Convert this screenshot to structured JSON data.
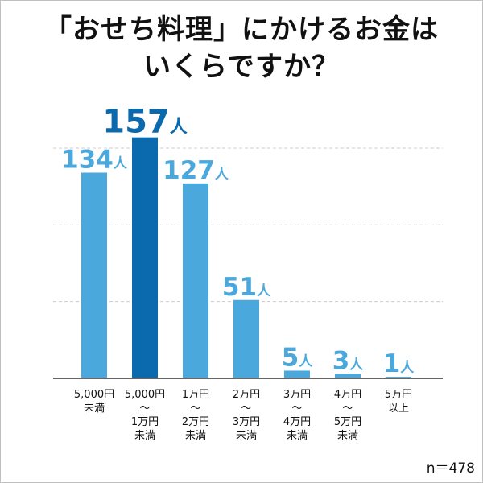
{
  "title_lines": [
    "「おせち料理」にかけるお金は",
    "いくらですか？"
  ],
  "sample_size": "n＝478",
  "colors": {
    "bar": "#4aa8dc",
    "bar_highlight": "#0b6aad",
    "gridline": "#cccccc",
    "axis": "#333333"
  },
  "chart_data": {
    "type": "bar",
    "title": "「おせち料理」にかけるお金はいくらですか？",
    "categories": [
      [
        "5,000円",
        "未満"
      ],
      [
        "5,000円",
        "～",
        "1万円",
        "未満"
      ],
      [
        "1万円",
        "～",
        "2万円",
        "未満"
      ],
      [
        "2万円",
        "～",
        "3万円",
        "未満"
      ],
      [
        "3万円",
        "～",
        "4万円",
        "未満"
      ],
      [
        "4万円",
        "～",
        "5万円",
        "未満"
      ],
      [
        "5万円",
        "以上"
      ]
    ],
    "values": [
      134,
      157,
      127,
      51,
      5,
      3,
      1
    ],
    "unit": "人",
    "highlight_index": 1,
    "ylim": [
      0,
      150
    ],
    "grid": true,
    "xlabel": "",
    "ylabel": ""
  }
}
